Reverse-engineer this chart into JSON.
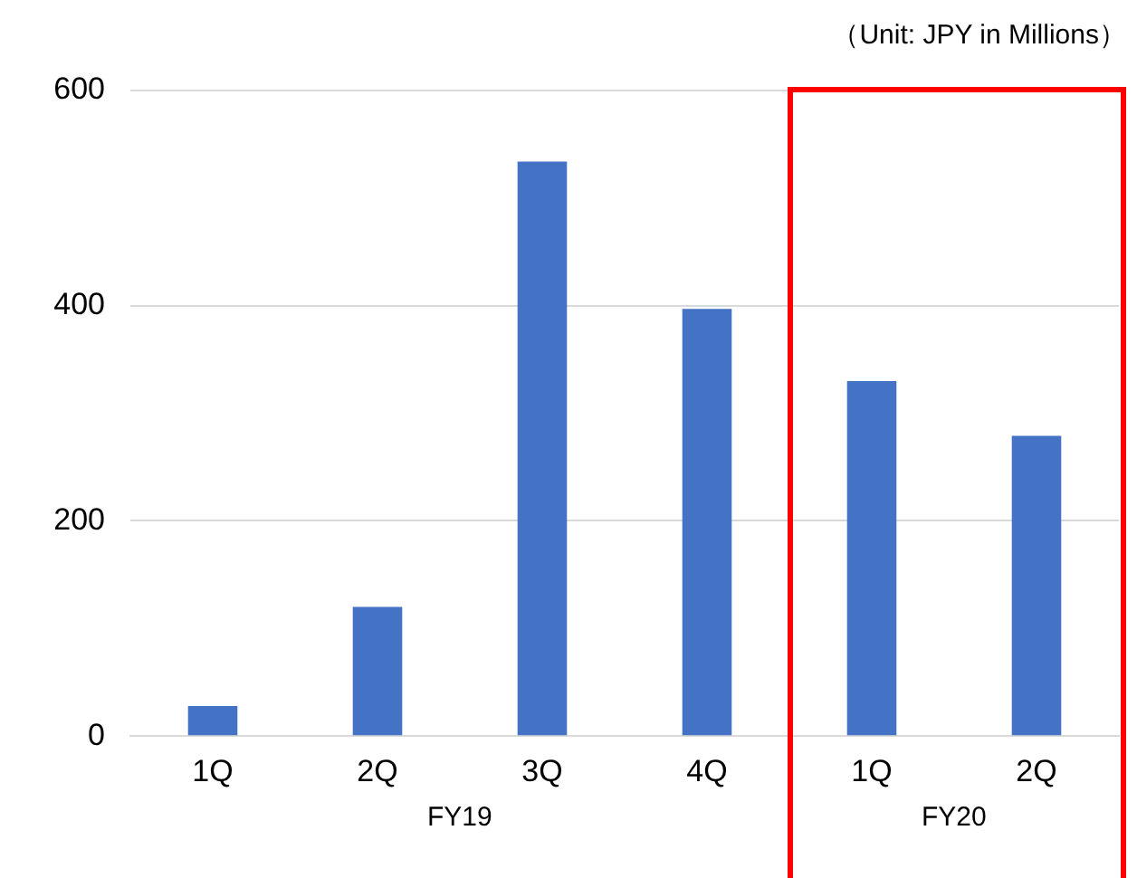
{
  "chart_data": {
    "type": "bar",
    "categories": [
      "1Q",
      "2Q",
      "3Q",
      "4Q",
      "1Q",
      "2Q"
    ],
    "values": [
      28,
      120,
      534,
      397,
      330,
      279
    ],
    "color": "#4472c4",
    "ylim": [
      0,
      600
    ],
    "yticks": [
      0,
      200,
      400,
      600
    ],
    "grid": "y",
    "legend": false,
    "annotations": [
      "（Unit: JPY in Millions）",
      "FY19",
      "FY20"
    ]
  }
}
